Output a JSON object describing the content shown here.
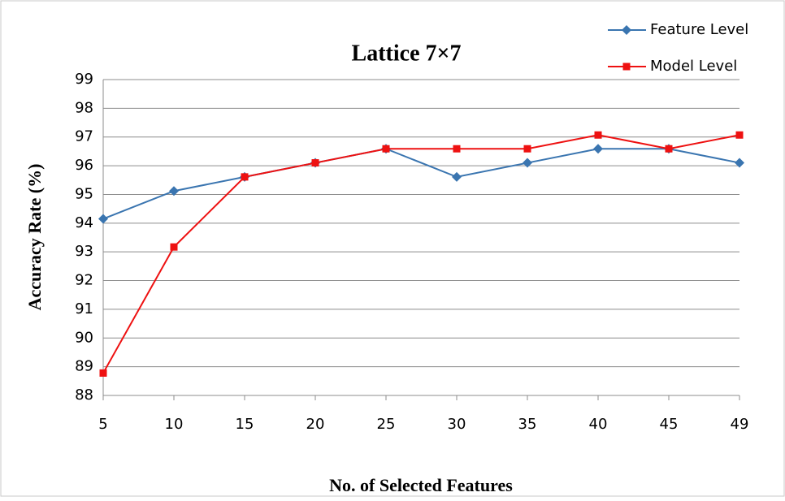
{
  "chart_data": {
    "type": "line",
    "title": "Lattice 7×7",
    "x_label": "No. of Selected Features",
    "y_label": "Accuracy Rate (%)",
    "categories": [
      "5",
      "10",
      "15",
      "20",
      "25",
      "30",
      "35",
      "40",
      "45",
      "49"
    ],
    "series": [
      {
        "name": "Feature Level",
        "color": "#3a75b0",
        "marker": "diamond",
        "values": [
          94.15,
          95.12,
          95.61,
          96.1,
          96.59,
          95.61,
          96.1,
          96.59,
          96.59,
          96.1
        ]
      },
      {
        "name": "Model Level",
        "color": "#ee1111",
        "marker": "square",
        "values": [
          88.78,
          93.17,
          95.61,
          96.1,
          96.59,
          96.59,
          96.59,
          97.07,
          96.59,
          97.07
        ]
      }
    ],
    "ylim": [
      88,
      99
    ],
    "yticks": [
      88,
      89,
      90,
      91,
      92,
      93,
      94,
      95,
      96,
      97,
      98,
      99
    ],
    "grid": true,
    "legend": "top-right"
  }
}
